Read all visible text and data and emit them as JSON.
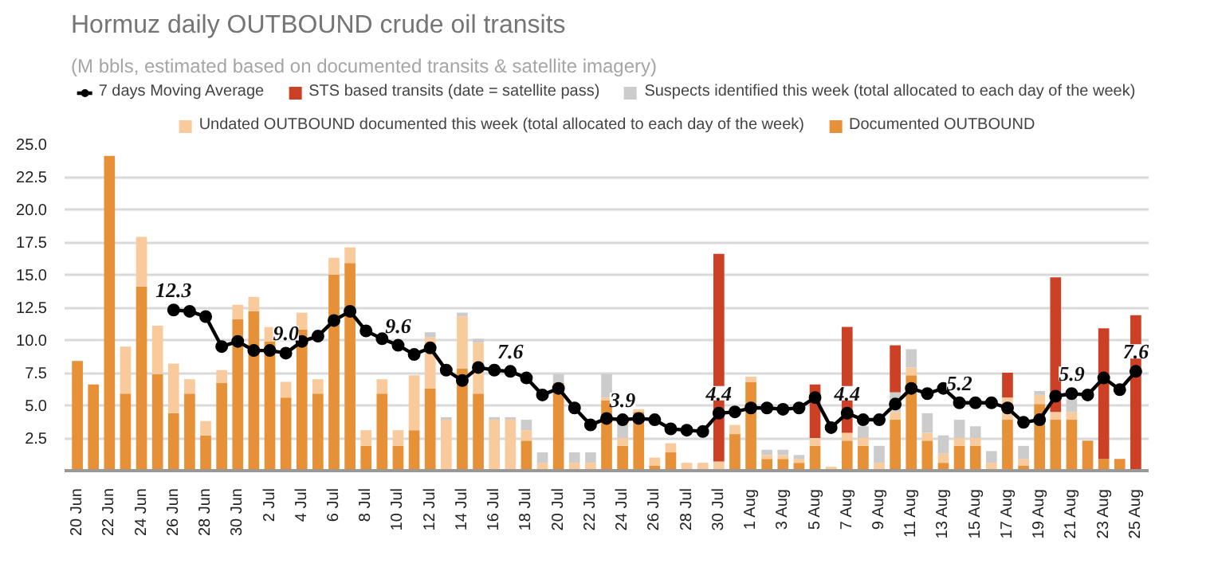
{
  "chart_data": {
    "type": "bar",
    "title": "Hormuz daily OUTBOUND crude oil transits",
    "subtitle": "(M bbls, estimated based on documented transits & satellite imagery)",
    "categories": [
      "20 Jun",
      null,
      "22 Jun",
      null,
      "24 Jun",
      null,
      "26 Jun",
      null,
      "28 Jun",
      null,
      "30 Jun",
      null,
      "2 Jul",
      null,
      "4 Jul",
      null,
      "6 Jul",
      null,
      "8 Jul",
      null,
      "10 Jul",
      null,
      "12 Jul",
      null,
      "14 Jul",
      null,
      "16 Jul",
      null,
      "18 Jul",
      null,
      "20 Jul",
      null,
      "22 Jul",
      null,
      "24 Jul",
      null,
      "26 Jul",
      null,
      "28 Jul",
      null,
      "30 Jul",
      null,
      "1 Aug",
      null,
      "3 Aug",
      null,
      "5 Aug",
      null,
      "7 Aug",
      null,
      "9 Aug",
      null,
      "11 Aug",
      null,
      "13 Aug",
      null,
      "15 Aug",
      null,
      "17 Aug",
      null,
      "19 Aug",
      null,
      "21 Aug",
      null,
      "23 Aug",
      null,
      "25 Aug"
    ],
    "stacked": true,
    "series": [
      {
        "name": "Documented OUTBOUND",
        "color": "#e69138",
        "values": [
          8.4,
          6.6,
          24.1,
          5.9,
          14.1,
          7.4,
          4.4,
          5.9,
          2.7,
          6.7,
          11.6,
          12.2,
          9.9,
          5.6,
          10.8,
          5.9,
          15.0,
          15.9,
          1.9,
          5.9,
          1.9,
          3.1,
          6.3,
          null,
          7.8,
          5.9,
          null,
          null,
          2.3,
          null,
          6.7,
          null,
          null,
          5.4,
          1.9,
          4.5,
          0.4,
          1.4,
          null,
          null,
          null,
          2.8,
          6.8,
          0.9,
          0.9,
          0.6,
          1.9,
          null,
          2.3,
          1.9,
          null,
          3.9,
          7.3,
          2.3,
          0.6,
          1.9,
          1.9,
          null,
          3.9,
          0.4,
          5.1,
          3.9,
          3.9,
          2.3,
          0.9,
          0.9,
          null
        ]
      },
      {
        "name": "Undated OUTBOUND documented this week (total allocated to each day of the week)",
        "color": "#f9cb9c",
        "values": [
          null,
          null,
          null,
          3.6,
          3.8,
          3.7,
          3.8,
          1.1,
          1.1,
          1.0,
          1.1,
          1.1,
          1.1,
          1.2,
          1.3,
          1.1,
          1.3,
          1.2,
          1.2,
          1.1,
          1.2,
          4.2,
          3.9,
          3.9,
          4.0,
          3.9,
          3.9,
          3.9,
          0.8,
          0.6,
          null,
          0.6,
          0.6,
          0.2,
          0.6,
          0.2,
          0.6,
          0.7,
          0.6,
          0.6,
          0.7,
          0.7,
          0.4,
          0.3,
          0.3,
          0.3,
          0.6,
          0.3,
          0.6,
          0.6,
          0.6,
          0.6,
          0.6,
          0.6,
          0.7,
          0.6,
          0.6,
          0.6,
          1.7,
          0.5,
          0.7,
          0.6,
          0.6,
          null,
          null,
          null,
          null
        ]
      },
      {
        "name": "Suspects identified this week (total allocated to each day of the week)",
        "color": "#cccccc",
        "values": [
          null,
          null,
          null,
          null,
          null,
          null,
          null,
          null,
          null,
          null,
          null,
          null,
          null,
          null,
          null,
          null,
          null,
          null,
          null,
          null,
          null,
          null,
          0.4,
          0.2,
          0.3,
          0.3,
          0.2,
          0.2,
          0.8,
          0.8,
          0.7,
          0.8,
          0.8,
          1.8,
          1.1,
          null,
          null,
          null,
          null,
          null,
          null,
          null,
          null,
          0.4,
          0.4,
          0.3,
          null,
          null,
          null,
          0.9,
          1.3,
          1.5,
          1.4,
          1.5,
          1.4,
          1.4,
          0.9,
          0.9,
          null,
          1.0,
          0.3,
          null,
          1.0,
          null,
          null,
          null,
          null
        ]
      },
      {
        "name": "STS based transits (date = satellite pass)",
        "color": "#cc4125",
        "values": [
          null,
          null,
          null,
          null,
          null,
          null,
          null,
          null,
          null,
          null,
          null,
          null,
          null,
          null,
          null,
          null,
          null,
          null,
          null,
          null,
          null,
          null,
          null,
          null,
          null,
          null,
          null,
          null,
          null,
          null,
          null,
          null,
          null,
          null,
          null,
          null,
          null,
          null,
          null,
          null,
          15.9,
          null,
          null,
          null,
          null,
          null,
          4.1,
          null,
          8.1,
          null,
          null,
          3.6,
          null,
          null,
          null,
          null,
          null,
          null,
          1.9,
          null,
          null,
          10.3,
          null,
          null,
          10.0,
          null,
          11.9
        ]
      },
      {
        "name": "7 days Moving Average",
        "type": "line",
        "color": "#000000",
        "marker": "circle",
        "values": [
          null,
          null,
          null,
          null,
          null,
          null,
          12.3,
          12.2,
          11.8,
          9.5,
          9.9,
          9.2,
          9.2,
          9.0,
          9.9,
          10.3,
          11.5,
          12.2,
          10.7,
          10.1,
          9.6,
          8.9,
          9.4,
          7.7,
          6.9,
          7.9,
          7.7,
          7.6,
          7.1,
          5.8,
          6.3,
          4.8,
          3.5,
          4.0,
          3.9,
          4.0,
          3.9,
          3.2,
          3.1,
          3.0,
          4.4,
          4.5,
          4.8,
          4.8,
          4.7,
          4.8,
          5.6,
          3.3,
          4.4,
          3.9,
          3.9,
          5.1,
          6.3,
          5.9,
          6.3,
          5.2,
          5.2,
          5.2,
          4.8,
          3.7,
          3.9,
          5.7,
          5.9,
          5.8,
          7.1,
          6.2,
          7.6
        ],
        "value_labels": [
          null,
          null,
          null,
          null,
          null,
          null,
          "12.3",
          null,
          null,
          null,
          null,
          null,
          null,
          "9.0",
          null,
          null,
          null,
          null,
          null,
          null,
          "9.6",
          null,
          null,
          null,
          null,
          null,
          null,
          "7.6",
          null,
          null,
          null,
          null,
          null,
          null,
          "3.9",
          null,
          null,
          null,
          null,
          null,
          "4.4",
          null,
          null,
          null,
          null,
          null,
          null,
          null,
          "4.4",
          null,
          null,
          null,
          null,
          null,
          null,
          "5.2",
          null,
          null,
          null,
          null,
          null,
          null,
          "5.9",
          null,
          null,
          null,
          "7.6"
        ]
      }
    ],
    "ylim": [
      0,
      25
    ],
    "yticks": [
      {
        "value": 2.5,
        "label": "2.5"
      },
      {
        "value": 5,
        "label": "5.0"
      },
      {
        "value": 7.5,
        "label": "7.5"
      },
      {
        "value": 10,
        "label": "10.0"
      },
      {
        "value": 12.5,
        "label": "12.5"
      },
      {
        "value": 15,
        "label": "15.0"
      },
      {
        "value": 17.5,
        "label": "17.5"
      },
      {
        "value": 20,
        "label": "20.0"
      },
      {
        "value": 22.5,
        "label": "22.5"
      },
      {
        "value": 25,
        "label": "25.0"
      }
    ],
    "grid": "y",
    "legend": "top"
  }
}
